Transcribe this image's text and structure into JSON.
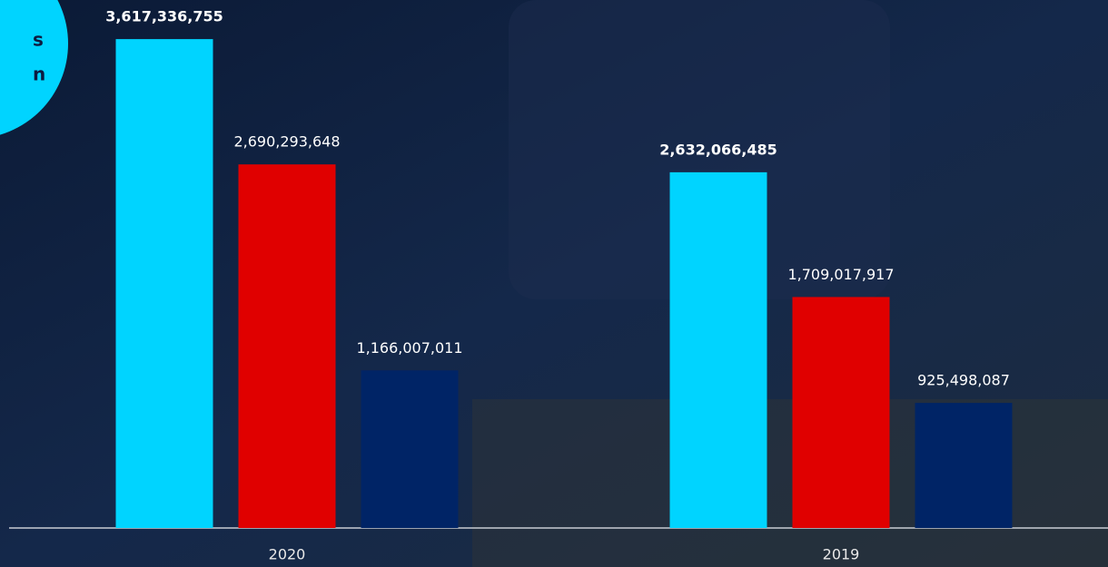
{
  "chart_data": {
    "type": "bar",
    "badge_text": [
      "s",
      "n"
    ],
    "categories": [
      "2020",
      "2019"
    ],
    "series": [
      {
        "color": "#00d4ff",
        "values": [
          3617336755,
          2632066485
        ],
        "value_labels": [
          "3,617,336,755",
          "2,632,066,485"
        ],
        "bold_labels": true
      },
      {
        "color": "#e00000",
        "values": [
          2690293648,
          1709017917
        ],
        "value_labels": [
          "2,690,293,648",
          "1,709,017,917"
        ],
        "bold_labels": false
      },
      {
        "color": "#002466",
        "values": [
          1166007011,
          925498087
        ],
        "value_labels": [
          "1,166,007,011",
          "925,498,087"
        ],
        "bold_labels": false
      }
    ],
    "ylim": [
      0,
      3900000000
    ]
  }
}
